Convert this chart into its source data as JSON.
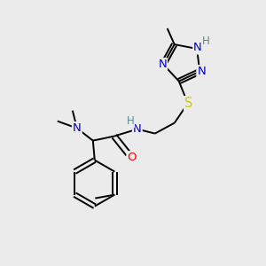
{
  "bg_color": "#ebebeb",
  "bond_color": "#000000",
  "atom_colors": {
    "N": "#0000cc",
    "O": "#ff0000",
    "S": "#cccc00",
    "H_color": "#4a9090",
    "C": "#000000"
  },
  "font_size": 9.5,
  "lw": 1.4
}
